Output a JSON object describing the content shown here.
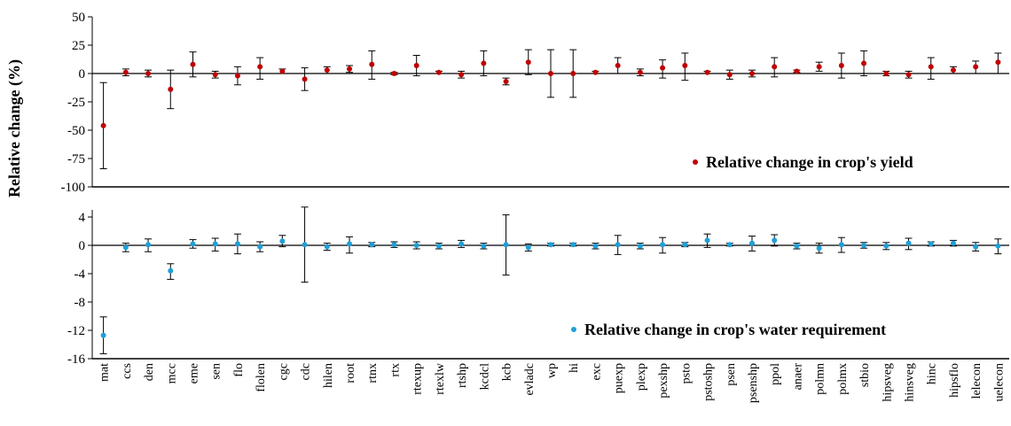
{
  "chart_data": {
    "type": "scatter",
    "ylabel": "Relative change (%)",
    "categories": [
      "mat",
      "ccs",
      "den",
      "mcc",
      "eme",
      "sen",
      "flo",
      "flolen",
      "cgc",
      "cdc",
      "hilen",
      "root",
      "rtnx",
      "rtx",
      "rtexup",
      "rtexlw",
      "rtshp",
      "kcdcl",
      "kcb",
      "evladc",
      "wp",
      "hi",
      "exc",
      "puexp",
      "plexp",
      "pexshp",
      "psto",
      "pstoshp",
      "psen",
      "psenshp",
      "ppol",
      "anaer",
      "polmn",
      "polmx",
      "stbio",
      "hipsveg",
      "hinsveg",
      "hinc",
      "hipsflo",
      "lelecon",
      "uelecon"
    ],
    "panels": [
      {
        "series_name": "Relative change in crop's yield",
        "color": "#c00000",
        "ylim": [
          -100,
          50
        ],
        "yticks": [
          -100,
          -75,
          -50,
          -25,
          0,
          25,
          50
        ],
        "legend_position": "lower-right",
        "values": [
          -46,
          1,
          0,
          -14,
          8,
          -1,
          -2,
          6,
          2,
          -5,
          3,
          4,
          8,
          0,
          7,
          1,
          -1,
          9,
          -7,
          10,
          0,
          0,
          1,
          7,
          1,
          5,
          7,
          1,
          -1,
          0,
          6,
          2,
          6,
          7,
          9,
          0,
          -1,
          6,
          3,
          6,
          10
        ],
        "err_low": [
          38,
          3,
          3,
          17,
          11,
          3,
          8,
          11,
          2,
          10,
          3,
          3,
          13,
          1,
          9,
          1,
          3,
          11,
          3,
          11,
          21,
          21,
          1,
          7,
          3,
          9,
          13,
          1,
          4,
          3,
          9,
          1,
          4,
          11,
          11,
          2,
          3,
          11,
          3,
          6,
          10
        ],
        "err_high": [
          38,
          3,
          3,
          17,
          11,
          3,
          8,
          8,
          2,
          10,
          3,
          3,
          12,
          1,
          9,
          1,
          3,
          11,
          3,
          11,
          21,
          21,
          1,
          7,
          3,
          7,
          11,
          1,
          4,
          3,
          8,
          1,
          4,
          11,
          11,
          2,
          3,
          8,
          3,
          5,
          8
        ]
      },
      {
        "series_name": "Relative change in crop's water requirement",
        "color": "#1f9fd8",
        "ylim": [
          -16,
          5
        ],
        "yticks": [
          -16,
          -12,
          -8,
          -4,
          0,
          4
        ],
        "legend_position": "lower-right",
        "values": [
          -12.7,
          -0.3,
          0.1,
          -3.6,
          0.2,
          0.2,
          0.2,
          -0.2,
          0.6,
          0.1,
          -0.2,
          0.2,
          0.1,
          0.1,
          0.0,
          -0.1,
          0.2,
          -0.1,
          0.1,
          -0.3,
          0.1,
          0.1,
          -0.1,
          0.1,
          -0.1,
          0.1,
          0.1,
          0.7,
          0.1,
          0.3,
          0.7,
          -0.1,
          -0.4,
          0.1,
          0.0,
          -0.1,
          0.3,
          0.2,
          0.3,
          -0.2,
          -0.1
        ],
        "err_low": [
          2.6,
          0.6,
          1.0,
          1.2,
          0.6,
          1.0,
          1.4,
          0.7,
          0.8,
          5.3,
          0.5,
          1.3,
          0.3,
          0.4,
          0.5,
          0.4,
          0.5,
          0.4,
          4.3,
          0.5,
          0.2,
          0.2,
          0.4,
          1.4,
          0.4,
          1.2,
          0.3,
          1.0,
          0.2,
          1.1,
          0.8,
          0.4,
          0.7,
          1.1,
          0.4,
          0.5,
          0.9,
          0.3,
          0.4,
          0.6,
          1.1
        ],
        "err_high": [
          2.6,
          0.6,
          0.8,
          1.0,
          0.6,
          0.8,
          1.4,
          0.7,
          0.8,
          5.3,
          0.5,
          1.0,
          0.3,
          0.4,
          0.5,
          0.4,
          0.5,
          0.4,
          4.2,
          0.5,
          0.2,
          0.2,
          0.4,
          1.3,
          0.4,
          1.0,
          0.3,
          0.9,
          0.2,
          1.0,
          0.8,
          0.4,
          0.7,
          1.0,
          0.4,
          0.5,
          0.7,
          0.3,
          0.4,
          0.6,
          1.0
        ]
      }
    ]
  }
}
